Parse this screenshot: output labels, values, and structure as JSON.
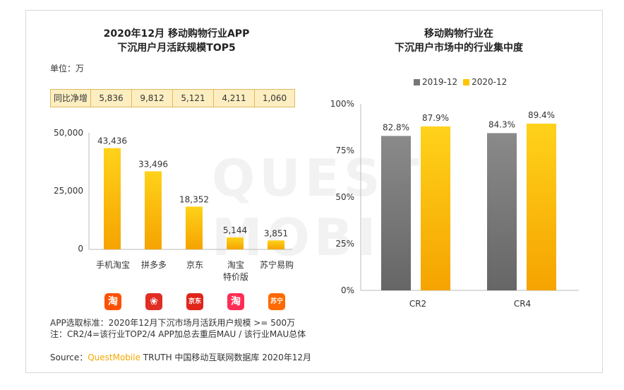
{
  "left_chart": {
    "title_line1": "2020年12月 移动购物行业APP",
    "title_line2": "下沉用户月活跃规模TOP5",
    "unit_label": "单位：万",
    "yoy_header": "同比净增",
    "yoy_values": [
      "5,836",
      "9,812",
      "5,121",
      "4,211",
      "1,060"
    ],
    "y_ticks": [
      "50,000",
      "25,000",
      "0"
    ],
    "categories": [
      "手机淘宝",
      "拼多多",
      "京东",
      "淘宝\n特价版",
      "苏宁易购"
    ],
    "value_labels": [
      "43,436",
      "33,496",
      "18,352",
      "5,144",
      "3,851"
    ],
    "logos": [
      {
        "name": "taobao-logo",
        "glyph": "淘",
        "color": "#ff5000"
      },
      {
        "name": "pinduoduo-logo",
        "glyph": "❀",
        "color": "#e02e24"
      },
      {
        "name": "jd-logo",
        "glyph": "京东",
        "color": "#e1251b"
      },
      {
        "name": "taobao-tejia-logo",
        "glyph": "淘",
        "color": "#ff2d55"
      },
      {
        "name": "suning-logo",
        "glyph": "苏宁",
        "color": "#ff6a00"
      }
    ]
  },
  "right_chart": {
    "title_line1": "移动购物行业在",
    "title_line2": "下沉用户市场中的行业集中度",
    "legend": [
      "2019-12",
      "2020-12"
    ],
    "y_ticks": [
      "100%",
      "75%",
      "50%",
      "25%",
      "0%"
    ],
    "categories": [
      "CR2",
      "CR4"
    ],
    "value_labels_2019": [
      "82.8%",
      "84.3%"
    ],
    "value_labels_2020": [
      "87.9%",
      "89.4%"
    ]
  },
  "notes": {
    "line1": "APP选取标准：2020年12月下沉市场月活跃用户规模 >= 500万",
    "line2": "注：CR2/4=该行业TOP2/4 APP加总去重后MAU / 该行业MAU总体"
  },
  "source": {
    "prefix": "Source：",
    "brand": "QuestMobile",
    "rest": " TRUTH 中国移动互联网数据库 2020年12月"
  },
  "watermark": "QUEST MOBILE",
  "colors": {
    "orange_top": "#ffd21a",
    "orange_bottom": "#f5a300",
    "gray_top": "#8a8a8a",
    "gray_bottom": "#666666"
  },
  "chart_data": [
    {
      "type": "bar",
      "title": "2020年12月 移动购物行业APP 下沉用户月活跃规模TOP5",
      "ylabel": "单位：万",
      "categories": [
        "手机淘宝",
        "拼多多",
        "京东",
        "淘宝特价版",
        "苏宁易购"
      ],
      "values": [
        43436,
        33496,
        18352,
        5144,
        3851
      ],
      "yoy_net_increase": [
        5836,
        9812,
        5121,
        4211,
        1060
      ],
      "ylim": [
        0,
        50000
      ]
    },
    {
      "type": "bar",
      "title": "移动购物行业在 下沉用户市场中的行业集中度",
      "categories": [
        "CR2",
        "CR4"
      ],
      "series": [
        {
          "name": "2019-12",
          "values": [
            82.8,
            84.3
          ]
        },
        {
          "name": "2020-12",
          "values": [
            87.9,
            89.4
          ]
        }
      ],
      "ylim": [
        0,
        100
      ],
      "legend": "top"
    }
  ]
}
